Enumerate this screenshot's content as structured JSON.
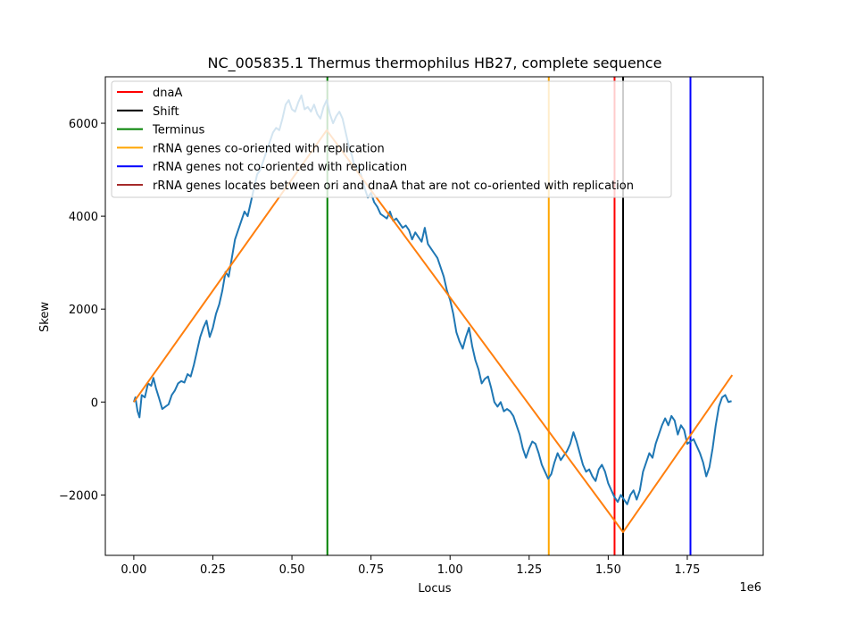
{
  "chart_data": {
    "type": "line",
    "title": "NC_005835.1 Thermus thermophilus HB27, complete sequence",
    "xlabel": "Locus",
    "ylabel": "Skew",
    "x_offset_label": "1e6",
    "xlim": [
      -90000,
      1990000
    ],
    "ylim": [
      -3300,
      7000
    ],
    "x_tick_values": [
      0,
      250000,
      500000,
      750000,
      1000000,
      1250000,
      1500000,
      1750000
    ],
    "x_tick_labels": [
      "0.00",
      "0.25",
      "0.50",
      "0.75",
      "1.00",
      "1.25",
      "1.50",
      "1.75"
    ],
    "y_tick_values": [
      -2000,
      0,
      2000,
      4000,
      6000
    ],
    "y_tick_labels": [
      "−2000",
      "0",
      "2000",
      "4000",
      "6000"
    ],
    "grid": false,
    "legend_position": "top-left",
    "series": [
      {
        "color": "#1f77b4",
        "points": [
          [
            0,
            0
          ],
          [
            5000,
            100
          ],
          [
            12000,
            -200
          ],
          [
            18000,
            -330
          ],
          [
            25000,
            150
          ],
          [
            35000,
            100
          ],
          [
            45000,
            400
          ],
          [
            55000,
            350
          ],
          [
            62000,
            520
          ],
          [
            70000,
            300
          ],
          [
            80000,
            80
          ],
          [
            90000,
            -150
          ],
          [
            100000,
            -100
          ],
          [
            110000,
            -50
          ],
          [
            120000,
            150
          ],
          [
            130000,
            250
          ],
          [
            140000,
            400
          ],
          [
            150000,
            450
          ],
          [
            160000,
            420
          ],
          [
            170000,
            600
          ],
          [
            180000,
            550
          ],
          [
            190000,
            800
          ],
          [
            200000,
            1100
          ],
          [
            210000,
            1400
          ],
          [
            220000,
            1600
          ],
          [
            230000,
            1750
          ],
          [
            240000,
            1400
          ],
          [
            250000,
            1600
          ],
          [
            260000,
            1900
          ],
          [
            270000,
            2100
          ],
          [
            280000,
            2400
          ],
          [
            290000,
            2800
          ],
          [
            300000,
            2700
          ],
          [
            310000,
            3100
          ],
          [
            320000,
            3500
          ],
          [
            330000,
            3700
          ],
          [
            340000,
            3900
          ],
          [
            350000,
            4100
          ],
          [
            360000,
            4000
          ],
          [
            370000,
            4300
          ],
          [
            380000,
            4600
          ],
          [
            390000,
            4900
          ],
          [
            400000,
            5000
          ],
          [
            410000,
            5200
          ],
          [
            420000,
            5400
          ],
          [
            430000,
            5600
          ],
          [
            440000,
            5800
          ],
          [
            450000,
            5900
          ],
          [
            460000,
            5850
          ],
          [
            470000,
            6100
          ],
          [
            480000,
            6400
          ],
          [
            490000,
            6500
          ],
          [
            500000,
            6300
          ],
          [
            510000,
            6250
          ],
          [
            520000,
            6450
          ],
          [
            530000,
            6600
          ],
          [
            540000,
            6300
          ],
          [
            550000,
            6350
          ],
          [
            560000,
            6250
          ],
          [
            570000,
            6400
          ],
          [
            580000,
            6200
          ],
          [
            590000,
            6100
          ],
          [
            600000,
            6350
          ],
          [
            610000,
            6500
          ],
          [
            620000,
            6200
          ],
          [
            630000,
            6000
          ],
          [
            640000,
            6150
          ],
          [
            650000,
            6250
          ],
          [
            660000,
            6100
          ],
          [
            670000,
            5800
          ],
          [
            680000,
            5500
          ],
          [
            690000,
            5300
          ],
          [
            700000,
            5000
          ],
          [
            710000,
            5050
          ],
          [
            720000,
            4850
          ],
          [
            730000,
            4600
          ],
          [
            740000,
            4400
          ],
          [
            750000,
            4500
          ],
          [
            760000,
            4300
          ],
          [
            770000,
            4200
          ],
          [
            780000,
            4050
          ],
          [
            790000,
            4000
          ],
          [
            800000,
            3950
          ],
          [
            810000,
            4100
          ],
          [
            820000,
            3900
          ],
          [
            830000,
            3950
          ],
          [
            840000,
            3850
          ],
          [
            850000,
            3750
          ],
          [
            860000,
            3800
          ],
          [
            870000,
            3700
          ],
          [
            880000,
            3500
          ],
          [
            890000,
            3650
          ],
          [
            900000,
            3550
          ],
          [
            910000,
            3450
          ],
          [
            920000,
            3750
          ],
          [
            930000,
            3400
          ],
          [
            940000,
            3300
          ],
          [
            950000,
            3200
          ],
          [
            960000,
            3100
          ],
          [
            970000,
            2900
          ],
          [
            980000,
            2700
          ],
          [
            990000,
            2400
          ],
          [
            1000000,
            2200
          ],
          [
            1010000,
            1900
          ],
          [
            1020000,
            1500
          ],
          [
            1030000,
            1300
          ],
          [
            1040000,
            1150
          ],
          [
            1050000,
            1400
          ],
          [
            1060000,
            1600
          ],
          [
            1070000,
            1200
          ],
          [
            1080000,
            900
          ],
          [
            1090000,
            700
          ],
          [
            1100000,
            400
          ],
          [
            1110000,
            500
          ],
          [
            1120000,
            550
          ],
          [
            1130000,
            300
          ],
          [
            1140000,
            0
          ],
          [
            1150000,
            -100
          ],
          [
            1160000,
            0
          ],
          [
            1170000,
            -200
          ],
          [
            1180000,
            -150
          ],
          [
            1190000,
            -200
          ],
          [
            1200000,
            -300
          ],
          [
            1210000,
            -500
          ],
          [
            1220000,
            -700
          ],
          [
            1230000,
            -1000
          ],
          [
            1240000,
            -1200
          ],
          [
            1250000,
            -1000
          ],
          [
            1260000,
            -850
          ],
          [
            1270000,
            -900
          ],
          [
            1280000,
            -1100
          ],
          [
            1290000,
            -1350
          ],
          [
            1300000,
            -1500
          ],
          [
            1310000,
            -1650
          ],
          [
            1320000,
            -1550
          ],
          [
            1330000,
            -1300
          ],
          [
            1340000,
            -1100
          ],
          [
            1350000,
            -1250
          ],
          [
            1360000,
            -1150
          ],
          [
            1370000,
            -1050
          ],
          [
            1380000,
            -900
          ],
          [
            1390000,
            -650
          ],
          [
            1400000,
            -850
          ],
          [
            1410000,
            -1100
          ],
          [
            1420000,
            -1350
          ],
          [
            1430000,
            -1500
          ],
          [
            1440000,
            -1450
          ],
          [
            1450000,
            -1600
          ],
          [
            1460000,
            -1700
          ],
          [
            1470000,
            -1450
          ],
          [
            1480000,
            -1350
          ],
          [
            1490000,
            -1500
          ],
          [
            1500000,
            -1750
          ],
          [
            1510000,
            -1900
          ],
          [
            1520000,
            -2050
          ],
          [
            1530000,
            -2150
          ],
          [
            1540000,
            -2000
          ],
          [
            1550000,
            -2100
          ],
          [
            1560000,
            -2200
          ],
          [
            1570000,
            -2000
          ],
          [
            1580000,
            -1900
          ],
          [
            1590000,
            -2100
          ],
          [
            1600000,
            -1900
          ],
          [
            1610000,
            -1500
          ],
          [
            1620000,
            -1300
          ],
          [
            1630000,
            -1100
          ],
          [
            1640000,
            -1200
          ],
          [
            1650000,
            -900
          ],
          [
            1660000,
            -700
          ],
          [
            1670000,
            -500
          ],
          [
            1680000,
            -350
          ],
          [
            1690000,
            -500
          ],
          [
            1700000,
            -300
          ],
          [
            1710000,
            -400
          ],
          [
            1720000,
            -700
          ],
          [
            1730000,
            -500
          ],
          [
            1740000,
            -600
          ],
          [
            1750000,
            -900
          ],
          [
            1760000,
            -850
          ],
          [
            1770000,
            -800
          ],
          [
            1780000,
            -950
          ],
          [
            1790000,
            -1100
          ],
          [
            1800000,
            -1300
          ],
          [
            1810000,
            -1600
          ],
          [
            1820000,
            -1400
          ],
          [
            1830000,
            -1000
          ],
          [
            1840000,
            -500
          ],
          [
            1850000,
            -100
          ],
          [
            1860000,
            100
          ],
          [
            1870000,
            150
          ],
          [
            1880000,
            0
          ],
          [
            1890000,
            20
          ]
        ]
      },
      {
        "color": "#ff7f0e",
        "points": [
          [
            0,
            0
          ],
          [
            610000,
            5850
          ],
          [
            1547000,
            -2800
          ],
          [
            1892000,
            580
          ]
        ]
      }
    ],
    "vertical_lines": [
      {
        "x": 612000,
        "color": "#008000",
        "label": "Terminus"
      },
      {
        "x": 1312000,
        "color": "#ffa500",
        "label": "rRNA genes co-oriented with replication"
      },
      {
        "x": 1520000,
        "color": "#ff0000",
        "label": "dnaA"
      },
      {
        "x": 1547000,
        "color": "#000000",
        "label": "Shift"
      },
      {
        "x": 1760000,
        "color": "#0000ff",
        "label": "rRNA genes not co-oriented with replication"
      }
    ],
    "legend": [
      {
        "label": "dnaA",
        "color": "#ff0000"
      },
      {
        "label": "Shift",
        "color": "#000000"
      },
      {
        "label": "Terminus",
        "color": "#008000"
      },
      {
        "label": "rRNA genes co-oriented with replication",
        "color": "#ffa500"
      },
      {
        "label": "rRNA genes not co-oriented with replication",
        "color": "#0000ff"
      },
      {
        "label": "rRNA genes locates between ori and dnaA that are not co-oriented with replication",
        "color": "#a52a2a"
      }
    ]
  }
}
